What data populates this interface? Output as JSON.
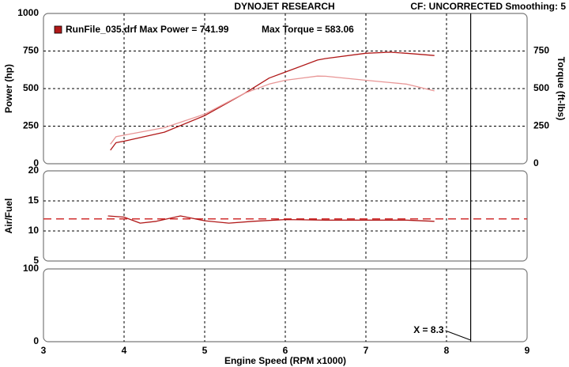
{
  "chart_data": [
    {
      "type": "line",
      "title": "DYNOJET RESEARCH",
      "subtitle": "CF: UNCORRECTED  Smoothing: 5",
      "ylabel": "Power (hp)",
      "y2label": "Torque (ft-lbs)",
      "annotations": [
        "RunFile_035.drf Max Power = 741.99",
        "Max Torque = 583.06"
      ],
      "legend": "top-left",
      "x": [
        3.83,
        3.9,
        4.0,
        4.5,
        5.0,
        5.5,
        5.8,
        6.0,
        6.4,
        6.5,
        7.0,
        7.3,
        7.5,
        7.85
      ],
      "series": [
        {
          "color": "#b01818",
          "values": [
            90,
            140,
            150,
            210,
            320,
            470,
            570,
            610,
            690,
            700,
            735,
            742,
            735,
            720
          ]
        },
        {
          "color": "#e89696",
          "axis": "y2",
          "values": [
            130,
            180,
            190,
            240,
            330,
            470,
            530,
            555,
            583,
            582,
            555,
            540,
            530,
            485
          ]
        }
      ],
      "ylim": [
        0,
        1000
      ],
      "yticks": [
        0,
        250,
        500,
        750,
        1000
      ],
      "y2lim": [
        0,
        1000
      ],
      "y2ticks": [
        0,
        250,
        500,
        750
      ],
      "grid": true
    },
    {
      "type": "line",
      "ylabel": "Air/Fuel",
      "x": [
        3.8,
        4.0,
        4.2,
        4.4,
        4.7,
        5.0,
        5.3,
        5.6,
        6.0,
        6.5,
        7.0,
        7.5,
        7.85
      ],
      "color": "#b01818",
      "values": [
        12.5,
        12.3,
        11.3,
        11.6,
        12.5,
        11.7,
        11.3,
        11.6,
        11.9,
        11.8,
        11.8,
        11.8,
        11.6
      ],
      "reference_line": {
        "value": 12,
        "color": "#d03030"
      },
      "ylim": [
        5,
        20
      ],
      "yticks": [
        5,
        10,
        15,
        20
      ],
      "grid": true
    },
    {
      "type": "line",
      "xlabel": "Engine Speed (RPM x1000)",
      "xlim": [
        3,
        9
      ],
      "xticks": [
        3,
        4,
        5,
        6,
        7,
        8,
        9
      ],
      "ylim": [
        0,
        100
      ],
      "yticks": [
        0,
        100
      ],
      "cursor": {
        "value": 8.3,
        "label": "X = 8.3"
      },
      "grid": true
    }
  ]
}
